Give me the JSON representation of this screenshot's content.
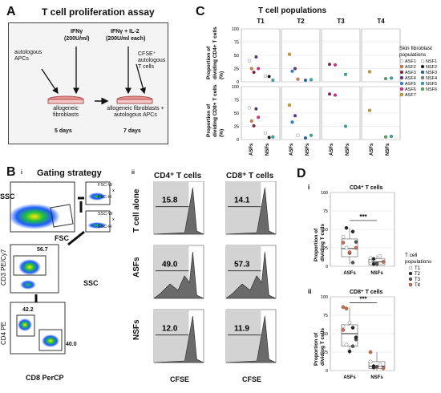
{
  "panelA": {
    "letter": "A",
    "title": "T cell proliferation assay",
    "ifng": "IFNγ",
    "ifng_conc": "(200U/ml)",
    "ifng_il2": "IFNγ + IL-2",
    "ifng_il2_conc": "(200U/ml each)",
    "auto_apcs": "autologous APCs",
    "cfse_cells": "CFSE⁺ autologous T cells",
    "fibro1": "allogeneic fibroblasts",
    "fibro2": "allogeneic fibroblasts + autologous APCs",
    "days1": "5 days",
    "days2": "7 days"
  },
  "panelB": {
    "letter": "B",
    "sub_i": "i",
    "gating_title": "Gating strategy",
    "ssc": "SSC",
    "fsc": "FSC",
    "fscw": "FSC-W",
    "x1": "x",
    "fsch": "FSC-H",
    "sscw": "SSC-W",
    "x2": "x",
    "ssch": "SSC-H",
    "cd3": "CD3 PE/Cy7",
    "ssc2": "SSC",
    "gate_cd3": "56.7",
    "cd4": "CD4 PE",
    "cd8": "CD8 PerCP",
    "gate_cd4": "42.2",
    "gate_cd8": "40.0",
    "sub_ii": "ii",
    "col_cd4": "CD4⁺ T cells",
    "col_cd8": "CD8⁺ T cells",
    "row_alone": "T cell alone",
    "row_asfs": "ASFs",
    "row_nsfs": "NSFs",
    "xlabel": "CFSE",
    "percents": [
      [
        "15.8",
        "14.1"
      ],
      [
        "49.0",
        "57.3"
      ],
      [
        "12.0",
        "11.9"
      ]
    ]
  },
  "chart_data": [
    {
      "type": "scatter",
      "panel": "C",
      "title": "T cell populations",
      "facets": [
        "T1",
        "T2",
        "T3",
        "T4"
      ],
      "rows": [
        "Proportion of dividing CD4+ T cells (%)",
        "Proportion of dividing CD8+ T cells (%)"
      ],
      "categories": [
        "ASFs",
        "NSFs"
      ],
      "ylim": [
        0,
        100
      ],
      "yticks": [
        "0",
        "25",
        "50",
        "75",
        "100"
      ],
      "legend_title": "Skin fibroblast populations",
      "legend": [
        "ASF1",
        "ASF2",
        "ASF3",
        "ASF4",
        "ASF5",
        "ASF6",
        "ASF7",
        "NSF1",
        "NSF2",
        "NSF3",
        "NSF4",
        "NSF5",
        "NSF6"
      ],
      "colors": {
        "ASF1": "#ffffff",
        "ASF2": "#e07b3a",
        "ASF3": "#8b1a3a",
        "ASF4": "#5b2a86",
        "ASF5": "#1e88e5",
        "ASF6": "#e91e8c",
        "ASF7": "#d4a017",
        "NSF1": "#ffffff",
        "NSF2": "#111111",
        "NSF3": "#1a5fa8",
        "NSF4": "#7f7f7f",
        "NSF5": "#20b2aa",
        "NSF6": "#4caf50"
      },
      "points": {
        "cd4": {
          "T1": [
            [
              "ASF1",
              40
            ],
            [
              "ASF2",
              25
            ],
            [
              "ASF3",
              18
            ],
            [
              "ASF4",
              47
            ],
            [
              "ASF6",
              25
            ],
            [
              "NSF1",
              11
            ],
            [
              "NSF2",
              10
            ],
            [
              "NSF5",
              3
            ]
          ],
          "T2": [
            [
              "ASF7",
              52
            ],
            [
              "ASF5",
              20
            ],
            [
              "ASF4",
              25
            ],
            [
              "ASF2",
              5
            ],
            [
              "NSF3",
              3
            ],
            [
              "NSF5",
              4
            ]
          ],
          "T3": [
            [
              "ASF3",
              33
            ],
            [
              "ASF6",
              32
            ],
            [
              "NSF5",
              14
            ]
          ],
          "T4": [
            [
              "ASF7",
              19
            ],
            [
              "NSF6",
              6
            ],
            [
              "NSF5",
              7
            ]
          ]
        },
        "cd8": {
          "T1": [
            [
              "ASF1",
              60
            ],
            [
              "ASF2",
              35
            ],
            [
              "ASF3",
              26
            ],
            [
              "ASF4",
              58
            ],
            [
              "ASF6",
              42
            ],
            [
              "NSF1",
              12
            ],
            [
              "NSF2",
              4
            ],
            [
              "NSF5",
              5
            ]
          ],
          "T2": [
            [
              "ASF7",
              65
            ],
            [
              "ASF5",
              33
            ],
            [
              "ASF4",
              45
            ],
            [
              "ASF1",
              8
            ],
            [
              "NSF3",
              3
            ],
            [
              "NSF5",
              8
            ]
          ],
          "T3": [
            [
              "ASF3",
              86
            ],
            [
              "ASF6",
              84
            ],
            [
              "NSF5",
              25
            ]
          ],
          "T4": [
            [
              "ASF7",
              55
            ],
            [
              "NSF6",
              5
            ],
            [
              "NSF5",
              6
            ]
          ]
        }
      }
    },
    {
      "type": "box",
      "panel": "D",
      "sub": "i",
      "title": "CD4⁺ T cells",
      "ylabel": "Proportion of dividing T cells",
      "categories": [
        "ASFs",
        "NSFs"
      ],
      "ylim": [
        0,
        100
      ],
      "yticks": [
        "0",
        "25",
        "50",
        "75",
        "100"
      ],
      "boxes": [
        {
          "q1": 13,
          "median": 24,
          "q3": 37,
          "lo": 3,
          "hi": 52
        },
        {
          "q1": 2,
          "median": 6,
          "q3": 10,
          "lo": 0,
          "hi": 15
        }
      ],
      "points": [
        [
          [
            40,
            "T1"
          ],
          [
            25,
            "T1"
          ],
          [
            18,
            "T2"
          ],
          [
            47,
            "T2"
          ],
          [
            33,
            "T3"
          ],
          [
            32,
            "T4"
          ],
          [
            52,
            "T2"
          ],
          [
            19,
            "T4"
          ],
          [
            5,
            "T3"
          ],
          [
            25,
            "T4"
          ]
        ],
        [
          [
            11,
            "T1"
          ],
          [
            10,
            "T2"
          ],
          [
            3,
            "T3"
          ],
          [
            14,
            "T1"
          ],
          [
            6,
            "T4"
          ],
          [
            7,
            "T1"
          ],
          [
            3,
            "T2"
          ],
          [
            4,
            "T3"
          ]
        ]
      ],
      "significance": "***"
    },
    {
      "type": "box",
      "panel": "D",
      "sub": "ii",
      "title": "CD8⁺ T cells",
      "ylabel": "Proportion of dividing T cells",
      "categories": [
        "ASFs",
        "NSFs"
      ],
      "ylim": [
        0,
        100
      ],
      "yticks": [
        "0",
        "25",
        "50",
        "75",
        "100"
      ],
      "boxes": [
        {
          "q1": 33,
          "median": 50,
          "q3": 62,
          "lo": 22,
          "hi": 86
        },
        {
          "q1": 3,
          "median": 6,
          "q3": 12,
          "lo": 0,
          "hi": 25
        }
      ],
      "points": [
        [
          [
            60,
            "T1"
          ],
          [
            35,
            "T1"
          ],
          [
            26,
            "T2"
          ],
          [
            58,
            "T2"
          ],
          [
            42,
            "T3"
          ],
          [
            86,
            "T4"
          ],
          [
            84,
            "T4"
          ],
          [
            65,
            "T1"
          ],
          [
            33,
            "T3"
          ],
          [
            45,
            "T2"
          ],
          [
            55,
            "T4"
          ]
        ],
        [
          [
            12,
            "T1"
          ],
          [
            4,
            "T2"
          ],
          [
            5,
            "T3"
          ],
          [
            8,
            "T1"
          ],
          [
            3,
            "T4"
          ],
          [
            25,
            "T4"
          ],
          [
            6,
            "T2"
          ]
        ]
      ],
      "significance": "***",
      "legend_title": "T cell populations",
      "legend": [
        "T1",
        "T2",
        "T3",
        "T4"
      ],
      "legend_colors": [
        "#ffffff",
        "#222222",
        "#555555",
        "#d36b4a"
      ]
    }
  ]
}
